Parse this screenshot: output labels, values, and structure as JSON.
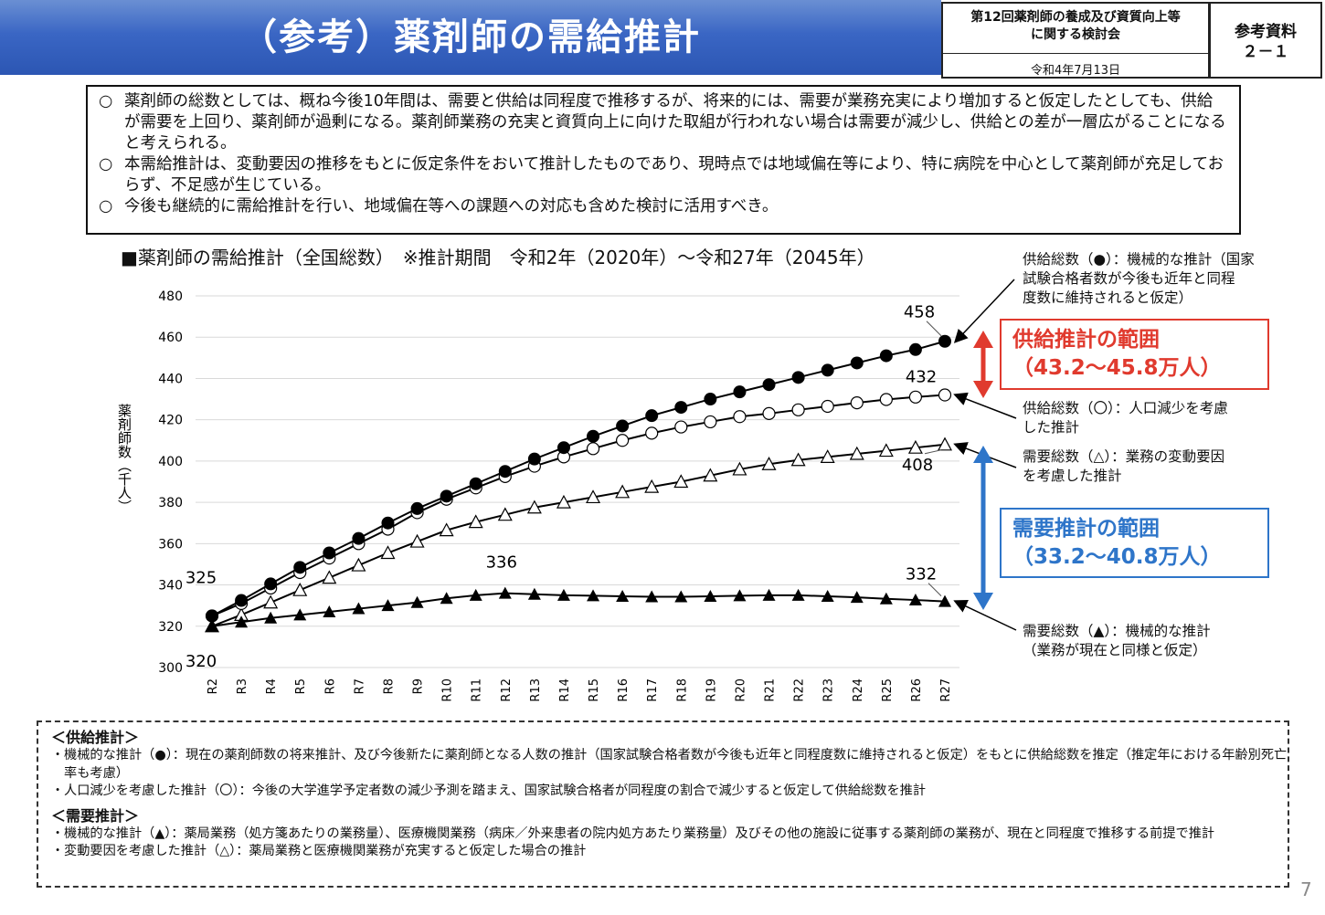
{
  "header": {
    "title": "（参考）薬剤師の需給推計",
    "meeting_line1": "第12回薬剤師の養成及び資質向上等",
    "meeting_line2": "に関する検討会",
    "date": "令和4年7月13日",
    "ref_line1": "参考資料",
    "ref_line2": "２－１"
  },
  "summary": {
    "bullet_mark": "○",
    "items": [
      "薬剤師の総数としては、概ね今後10年間は、需要と供給は同程度で推移するが、将来的には、需要が業務充実により増加すると仮定したとしても、供給が需要を上回り、薬剤師が過剰になる。薬剤師業務の充実と資質向上に向けた取組が行われない場合は需要が減少し、供給との差が一層広がることになると考えられる。",
      "本需給推計は、変動要因の推移をもとに仮定条件をおいて推計したものであり、現時点では地域偏在等により、特に病院を中心として薬剤師が充足しておらず、不足感が生じている。",
      "今後も継続的に需給推計を行い、地域偏在等への課題への対応も含めた検討に活用すべき。"
    ]
  },
  "chart_title": "■薬剤師の需給推計（全国総数）　※推計期間　令和2年（2020年）～令和27年（2045年）",
  "chart_data": {
    "type": "line",
    "ylabel": "薬剤師数（千人）",
    "xlabel": "",
    "ylim": [
      300,
      480
    ],
    "yticks": [
      300,
      320,
      340,
      360,
      380,
      400,
      420,
      440,
      460,
      480
    ],
    "grid": true,
    "categories": [
      "R2",
      "R3",
      "R4",
      "R5",
      "R6",
      "R7",
      "R8",
      "R9",
      "R10",
      "R11",
      "R12",
      "R13",
      "R14",
      "R15",
      "R16",
      "R17",
      "R18",
      "R19",
      "R20",
      "R21",
      "R22",
      "R23",
      "R24",
      "R25",
      "R26",
      "R27"
    ],
    "series": [
      {
        "name": "供給総数（●）",
        "marker": "filled-circle",
        "color": "#000000",
        "values": [
          325,
          332.5,
          340.5,
          348.5,
          355.5,
          362.5,
          370,
          377,
          383,
          389,
          395,
          401,
          406.5,
          412,
          417,
          422,
          426,
          430,
          433.5,
          437,
          440.5,
          444,
          447.5,
          451,
          454,
          458
        ]
      },
      {
        "name": "供給総数（○）",
        "marker": "open-circle",
        "color": "#000000",
        "values": [
          325,
          331,
          338.5,
          346,
          353,
          360,
          367,
          375,
          381.5,
          387,
          392.5,
          397.5,
          402,
          406,
          410,
          413.5,
          416.5,
          419,
          421.5,
          423,
          424.8,
          426.5,
          428.2,
          429.8,
          431,
          432
        ]
      },
      {
        "name": "需要総数（△）",
        "marker": "open-triangle",
        "color": "#000000",
        "values": [
          320,
          325.5,
          331.5,
          337.5,
          343.5,
          349.5,
          355.5,
          361,
          366.5,
          370.5,
          374,
          377.5,
          380,
          382.5,
          385,
          387.5,
          390,
          393,
          396,
          398.5,
          400.5,
          402,
          403.5,
          405,
          406.5,
          408
        ]
      },
      {
        "name": "需要総数（▲）",
        "marker": "filled-triangle",
        "color": "#000000",
        "values": [
          320,
          322,
          324,
          325.5,
          327,
          328.5,
          330,
          331.5,
          333.5,
          335,
          336,
          335.5,
          335,
          334.8,
          334.5,
          334.3,
          334.3,
          334.5,
          334.8,
          335,
          335,
          334.5,
          334,
          333.3,
          332.7,
          332
        ]
      }
    ],
    "data_labels": [
      {
        "text": "458",
        "series": 0,
        "index": 25
      },
      {
        "text": "432",
        "series": 1,
        "index": 25
      },
      {
        "text": "408",
        "series": 2,
        "index": 25
      },
      {
        "text": "325",
        "series": 0,
        "index": 0
      },
      {
        "text": "320",
        "series": 3,
        "index": 0
      },
      {
        "text": "336",
        "series": 3,
        "index": 10
      },
      {
        "text": "332",
        "series": 3,
        "index": 25
      }
    ]
  },
  "annotations": {
    "supply_mech": [
      "供給総数（●）：機械的な推計（国家",
      "試験合格者数が今後も近年と同程",
      "度数に維持されると仮定）"
    ],
    "supply_pop": [
      "供給総数（〇）：人口減少を考慮",
      "した推計"
    ],
    "demand_var": [
      "需要総数（△）：業務の変動要因",
      "を考慮した推計"
    ],
    "demand_mech": [
      "需要総数（▲）：機械的な推計",
      "（業務が現在と同様と仮定）"
    ]
  },
  "supply_range": {
    "label": "供給推計の範囲",
    "value": "（43.2～45.8万人）",
    "color": "#e03a2e"
  },
  "demand_range": {
    "label": "需要推計の範囲",
    "value": "（33.2～40.8万人）",
    "color": "#2e75c9"
  },
  "notes": {
    "supply_heading": "＜供給推計＞",
    "supply_items": [
      "機械的な推計（●）：現在の薬剤師数の将来推計、及び今後新たに薬剤師となる人数の推計（国家試験合格者数が今後も近年と同程度数に維持されると仮定）をもとに供給総数を推定（推定年における年齢別死亡率も考慮）",
      "人口減少を考慮した推計（〇）：今後の大学進学予定者数の減少予測を踏まえ、国家試験合格者が同程度の割合で減少すると仮定して供給総数を推計"
    ],
    "demand_heading": "＜需要推計＞",
    "demand_items": [
      "機械的な推計（▲）：薬局業務（処方箋あたりの業務量）、医療機関業務（病床／外来患者の院内処方あたり業務量）及びその他の施設に従事する薬剤師の業務が、現在と同程度で推移する前提で推計",
      "変動要因を考慮した推計（△）：薬局業務と医療機関業務が充実すると仮定した場合の推計"
    ],
    "bullet": "・"
  },
  "page_number": "7"
}
